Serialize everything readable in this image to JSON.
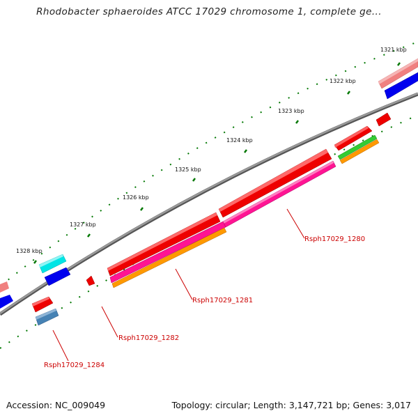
{
  "header": {
    "title": "Rhodobacter sphaeroides ATCC 17029 chromosome 1, complete ge..."
  },
  "footer": {
    "accession": "Accession: NC_009049",
    "topology": "Topology: circular; Length: 3,147,721 bp; Genes: 3,017"
  },
  "scale": {
    "ticks": [
      "1321 kbp",
      "1322 kbp",
      "1323 kbp",
      "1324 kbp",
      "1325 kbp",
      "1326 kbp",
      "1327 kbp",
      "1328 kbp"
    ]
  },
  "gene_labels": {
    "g1280": "Rsph17029_1280",
    "g1281": "Rsph17029_1281",
    "g1282": "Rsph17029_1282",
    "g1284": "Rsph17029_1284"
  },
  "colors": {
    "backbone": "#7a7a7a",
    "gene_red": "#ee0000",
    "gene_magenta": "#ff1493",
    "gene_orange": "#ff9900",
    "gene_green": "#33cc33",
    "gene_blue": "#0000ee",
    "gene_cyan": "#00e5e5",
    "gene_pink": "#f08080",
    "gene_steel": "#4682b4",
    "tick_green": "#007700",
    "label_red": "#cc0000"
  }
}
